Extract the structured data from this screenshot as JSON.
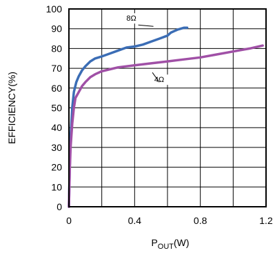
{
  "chart_data": {
    "type": "line",
    "xlabel_main": "P",
    "xlabel_sub": "OUT",
    "xlabel_unit": "(W)",
    "ylabel": "EFFICIENCY(%)",
    "xlim": [
      0,
      1.2
    ],
    "ylim": [
      0,
      100
    ],
    "xticks": [
      0,
      0.4,
      0.8,
      1.2
    ],
    "xtick_labels": [
      "0",
      "0.4",
      "0.8",
      "1.2"
    ],
    "yticks": [
      0,
      10,
      20,
      30,
      40,
      50,
      60,
      70,
      80,
      90,
      100
    ],
    "ytick_labels": [
      "0",
      "10",
      "20",
      "30",
      "40",
      "50",
      "60",
      "70",
      "80",
      "90",
      "100"
    ],
    "grid": true,
    "series": [
      {
        "name": "8Ω",
        "color": "#3b6db5",
        "x": [
          0,
          0.005,
          0.01,
          0.02,
          0.03,
          0.045,
          0.06,
          0.08,
          0.1,
          0.13,
          0.16,
          0.2,
          0.25,
          0.3,
          0.35,
          0.4,
          0.45,
          0.5,
          0.55,
          0.6,
          0.62,
          0.66,
          0.7,
          0.72
        ],
        "y": [
          0,
          20,
          35,
          50,
          58,
          63,
          66,
          69,
          71,
          73.5,
          75,
          76,
          77.5,
          79,
          80.5,
          81,
          82,
          83.5,
          85,
          86.5,
          88,
          89.5,
          90.5,
          90.5
        ]
      },
      {
        "name": "4Ω",
        "color": "#a050a6",
        "x": [
          0,
          0.005,
          0.01,
          0.02,
          0.03,
          0.04,
          0.06,
          0.08,
          0.1,
          0.13,
          0.16,
          0.2,
          0.25,
          0.3,
          0.35,
          0.4,
          0.5,
          0.6,
          0.7,
          0.8,
          0.9,
          1.0,
          1.1,
          1.18
        ],
        "y": [
          0,
          18,
          30,
          42,
          50,
          55,
          58,
          61,
          63,
          65.5,
          67,
          68.5,
          69.5,
          70.5,
          71,
          71.5,
          72.5,
          73.5,
          74.5,
          75.5,
          77,
          78.5,
          80,
          81.5
        ]
      }
    ],
    "annotations": [
      {
        "text": "8Ω",
        "x": 0.38,
        "y": 94
      },
      {
        "text": "4Ω",
        "x": 0.55,
        "y": 63
      }
    ]
  }
}
